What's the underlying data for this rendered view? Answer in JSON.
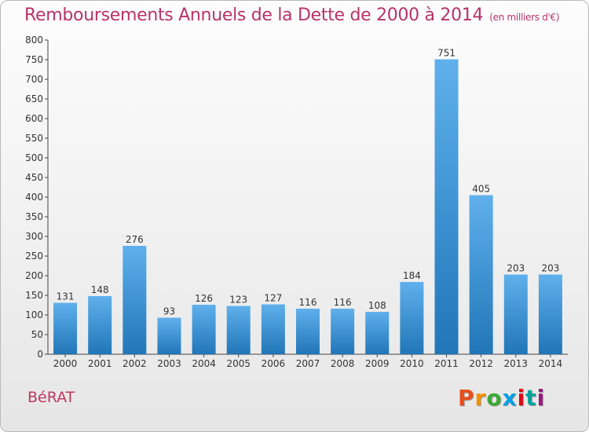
{
  "chart_data": {
    "type": "bar",
    "title": "Remboursements Annuels de la Dette de 2000 à 2014",
    "subtitle": "(en milliers d'€)",
    "categories": [
      "2000",
      "2001",
      "2002",
      "2003",
      "2004",
      "2005",
      "2006",
      "2007",
      "2008",
      "2009",
      "2010",
      "2011",
      "2012",
      "2013",
      "2014"
    ],
    "values": [
      131,
      148,
      276,
      93,
      126,
      123,
      127,
      116,
      116,
      108,
      184,
      751,
      405,
      203,
      203
    ],
    "ylim": [
      0,
      800
    ],
    "yticks": [
      0,
      50,
      100,
      150,
      200,
      250,
      300,
      350,
      400,
      450,
      500,
      550,
      600,
      650,
      700,
      750,
      800
    ],
    "grid": false,
    "legend": "none",
    "bar_color": "#3d9be0"
  },
  "footer": {
    "commune": "BéRAT",
    "brand": "Proxiti",
    "brand_colors": [
      "#e84e1b",
      "#f39200",
      "#3aaa35",
      "#009fe3",
      "#e30613",
      "#00a19a",
      "#951b81"
    ]
  },
  "colors": {
    "title": "#b8336a",
    "axis": "#333333"
  }
}
